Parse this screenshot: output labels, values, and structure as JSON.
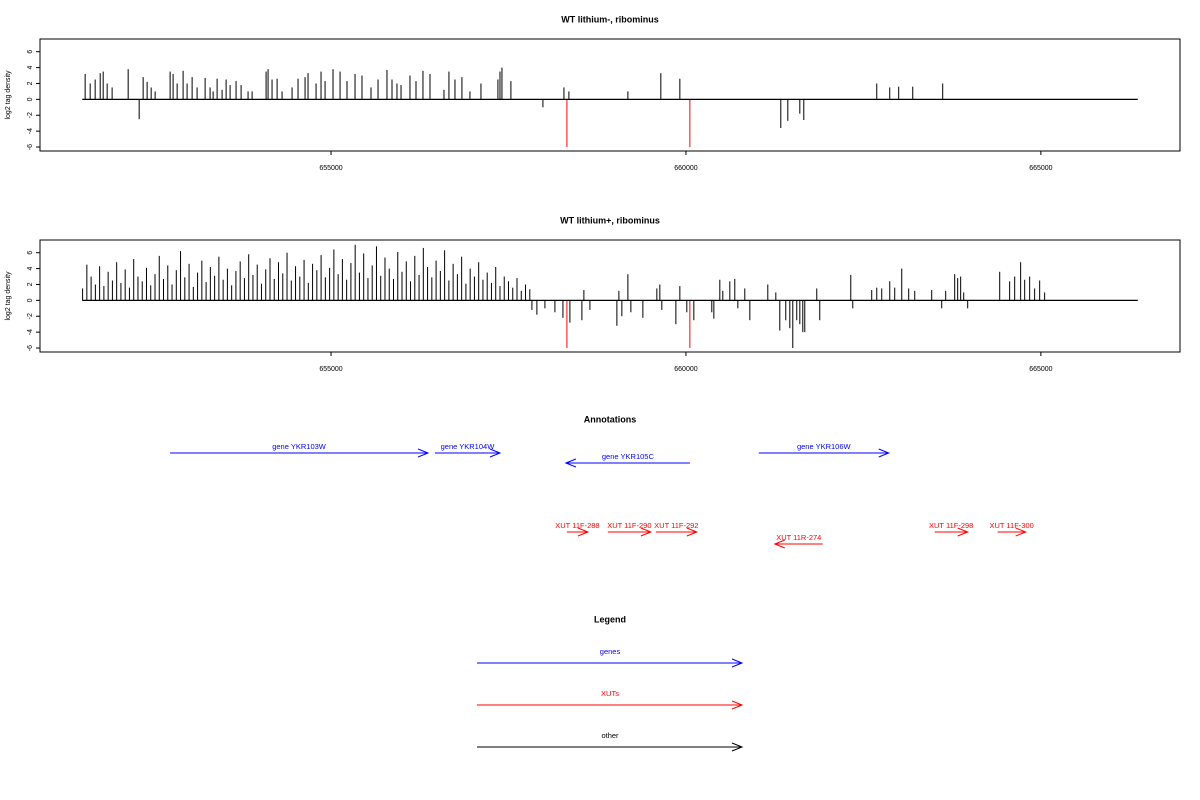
{
  "chart_data": [
    {
      "type": "spike",
      "title": "WT lithium-, ribominus",
      "ylabel": "log2 tag density",
      "xlim": [
        650900,
        666960
      ],
      "ylim": [
        -6.5,
        7.6
      ],
      "xticks": [
        655000,
        660000,
        665000
      ],
      "yticks": [
        -6,
        -4,
        -2,
        0,
        2,
        4,
        6
      ],
      "series": [
        {
          "color": "#000000",
          "x": [
            651536,
            651607,
            651677,
            651748,
            651790,
            651846,
            651916,
            652142,
            652297,
            652353,
            652409,
            652466,
            652522,
            652733,
            652775,
            652832,
            652916,
            652972,
            653043,
            653113,
            653226,
            653296,
            653339,
            653395,
            653465,
            653522,
            653578,
            653662,
            653733,
            653831,
            653888,
            654085,
            654113,
            654169,
            654240,
            654310,
            654451,
            654535,
            654634,
            654676,
            654789,
            654859,
            654916,
            655028,
            655127,
            655225,
            655338,
            655436,
            655563,
            655662,
            655788,
            655859,
            655929,
            655986,
            656112,
            656197,
            656295,
            656394,
            656591,
            656661,
            656746,
            656844,
            656957,
            657112,
            657351,
            657380,
            657408,
            657534,
            657985,
            658281,
            658351,
            659182,
            659646,
            659914,
            661336,
            661435,
            661604,
            661660,
            662688,
            662871,
            662997,
            663195,
            663617
          ],
          "values": [
            3.2,
            2,
            2.5,
            3.3,
            3.5,
            2,
            1.5,
            3.8,
            -2.5,
            2.8,
            2.2,
            1.5,
            1,
            3.5,
            3.2,
            2,
            3.6,
            2,
            2.8,
            1.5,
            2.7,
            1.5,
            1,
            2.6,
            1.2,
            2.5,
            1.8,
            2.3,
            1.8,
            1,
            1,
            3.5,
            3.8,
            2.5,
            2.6,
            1,
            1.5,
            2.6,
            2.8,
            3.3,
            2,
            3.5,
            2.3,
            3.8,
            3.5,
            2.3,
            3.2,
            3,
            1.5,
            2.5,
            3.7,
            2.5,
            2,
            1.8,
            3,
            2.3,
            3.6,
            3.2,
            1.2,
            3.5,
            2.5,
            2.8,
            1,
            2,
            2.5,
            3.5,
            4,
            2.3,
            -1,
            1.5,
            1,
            1,
            3.3,
            2.6,
            -3.6,
            -2.7,
            -1.8,
            -2.6,
            2,
            1.5,
            1.6,
            1.6,
            2
          ]
        },
        {
          "color": "#ff0000",
          "x": [
            658323,
            660055
          ],
          "values": [
            -6,
            -6
          ]
        }
      ]
    },
    {
      "type": "spike",
      "title": "WT lithium+, ribominus",
      "ylabel": "log2 tag density",
      "xlim": [
        650900,
        666960
      ],
      "ylim": [
        -6.5,
        7.6
      ],
      "xticks": [
        655000,
        660000,
        665000
      ],
      "yticks": [
        -6,
        -4,
        -2,
        0,
        2,
        4,
        6
      ],
      "series": [
        {
          "color": "#000000",
          "x": [
            651500,
            651560,
            651620,
            651680,
            651740,
            651800,
            651860,
            651920,
            651980,
            652040,
            652100,
            652160,
            652220,
            652280,
            652340,
            652400,
            652460,
            652520,
            652580,
            652640,
            652700,
            652760,
            652820,
            652880,
            652940,
            653000,
            653060,
            653120,
            653180,
            653240,
            653300,
            653360,
            653420,
            653480,
            653540,
            653600,
            653660,
            653720,
            653780,
            653840,
            653900,
            653960,
            654020,
            654080,
            654140,
            654200,
            654260,
            654320,
            654380,
            654440,
            654500,
            654560,
            654620,
            654680,
            654740,
            654800,
            654860,
            654920,
            654980,
            655040,
            655100,
            655160,
            655220,
            655280,
            655340,
            655400,
            655460,
            655520,
            655580,
            655640,
            655700,
            655760,
            655820,
            655880,
            655940,
            656000,
            656060,
            656120,
            656180,
            656240,
            656300,
            656360,
            656420,
            656480,
            656540,
            656600,
            656660,
            656720,
            656780,
            656840,
            656900,
            656960,
            657020,
            657080,
            657140,
            657200,
            657260,
            657320,
            657380,
            657440,
            657500,
            657560,
            657620,
            657680,
            657740,
            657800,
            657830,
            657900,
            658013,
            658154,
            658267,
            658365,
            658534,
            658562,
            658647,
            659027,
            659055,
            659097,
            659182,
            659224,
            659393,
            659590,
            659632,
            659660,
            659858,
            659914,
            660012,
            660111,
            660364,
            660393,
            660477,
            660519,
            660618,
            660688,
            660731,
            660829,
            660900,
            661153,
            661266,
            661322,
            661406,
            661463,
            661505,
            661561,
            661604,
            661646,
            661674,
            661843,
            661885,
            662322,
            662350,
            662617,
            662688,
            662758,
            662871,
            662941,
            663040,
            663138,
            663223,
            663462,
            663603,
            663659,
            663786,
            663828,
            663870,
            663913,
            663969,
            664420,
            664560,
            664631,
            664715,
            664772,
            664842,
            664912,
            664983,
            665053
          ],
          "values": [
            1.5,
            4.5,
            3,
            2,
            4.3,
            1.8,
            3.6,
            2.5,
            4.8,
            2.2,
            3.9,
            1.6,
            5.2,
            3,
            2.4,
            4.1,
            1.9,
            3.3,
            5.6,
            2.7,
            4.4,
            2,
            3.8,
            6.2,
            2.9,
            4.6,
            1.7,
            3.5,
            5,
            2.3,
            4.2,
            3.1,
            5.5,
            2.6,
            4,
            1.9,
            3.7,
            4.9,
            2.8,
            5.8,
            3.2,
            4.5,
            2.1,
            3.9,
            5.3,
            2.7,
            4.8,
            3.4,
            6,
            2.5,
            4.3,
            3,
            5.1,
            2.2,
            4.6,
            3.8,
            5.7,
            2.9,
            4.1,
            6.4,
            3.3,
            5.2,
            2.6,
            4.7,
            7,
            3.5,
            5.9,
            2.8,
            4.4,
            6.8,
            3.1,
            5.4,
            4,
            2.7,
            6.1,
            3.6,
            4.9,
            2.4,
            5.6,
            3.2,
            6.6,
            4.2,
            2.9,
            5,
            3.7,
            6.3,
            2.5,
            4.6,
            3.3,
            5.5,
            2.1,
            4,
            3,
            4.8,
            2.6,
            3.5,
            2.2,
            4.2,
            1.8,
            3,
            2.4,
            1.6,
            2.8,
            1.2,
            2,
            1.4,
            -1.2,
            -1.8,
            -1,
            -1.5,
            -2.2,
            -2.8,
            -2.5,
            1.3,
            -1.2,
            -3.2,
            1.2,
            -2,
            3.3,
            -1.5,
            -2.2,
            1.5,
            2,
            -1.2,
            -3,
            1.8,
            -1.5,
            -2.5,
            -1.5,
            -2.3,
            2.6,
            1.2,
            2.4,
            2.7,
            -1,
            1.5,
            -2.5,
            2,
            1,
            -3.8,
            -2.5,
            -3.5,
            -6,
            -2.5,
            -3,
            -4,
            -4,
            1.5,
            -2.5,
            3.2,
            -1,
            1.3,
            1.6,
            1.5,
            2.4,
            1.6,
            4,
            1.5,
            1.2,
            1.3,
            -1,
            1.2,
            3.3,
            2.8,
            3,
            1,
            -1,
            3.6,
            2.4,
            3,
            4.8,
            2.6,
            3,
            1.5,
            2.5,
            1
          ]
        },
        {
          "color": "#ff0000",
          "x": [
            658323,
            660055
          ],
          "values": [
            -6,
            -6
          ]
        }
      ]
    }
  ],
  "annotations": {
    "title": "Annotations",
    "genes": {
      "color": "#0000ff",
      "items": [
        {
          "label": "gene YKR103W",
          "start": 652733,
          "end": 656366,
          "strand": "+"
        },
        {
          "label": "gene YKR104W",
          "start": 656464,
          "end": 657380,
          "strand": "+"
        },
        {
          "label": "gene YKR105C",
          "start": 658309,
          "end": 660055,
          "strand": "-"
        },
        {
          "label": "gene YKR106W",
          "start": 661026,
          "end": 662857,
          "strand": "+"
        }
      ]
    },
    "xuts": {
      "color": "#ff0000",
      "items": [
        {
          "label": "XUT 11F-288",
          "start": 658323,
          "end": 658619,
          "strand": "+"
        },
        {
          "label": "XUT 11F-290",
          "start": 658900,
          "end": 659506,
          "strand": "+"
        },
        {
          "label": "XUT 11F-292",
          "start": 659576,
          "end": 660153,
          "strand": "+"
        },
        {
          "label": "XUT 11R-274",
          "start": 661252,
          "end": 661927,
          "strand": "-"
        },
        {
          "label": "XUT 11F-298",
          "start": 663504,
          "end": 663969,
          "strand": "+"
        },
        {
          "label": "XUT 11F-300",
          "start": 664391,
          "end": 664786,
          "strand": "+"
        }
      ]
    }
  },
  "legend": {
    "title": "Legend",
    "items": [
      {
        "label": "genes",
        "color": "#0000ff"
      },
      {
        "label": "XUTs",
        "color": "#ff0000"
      },
      {
        "label": "other",
        "color": "#000000"
      }
    ]
  }
}
